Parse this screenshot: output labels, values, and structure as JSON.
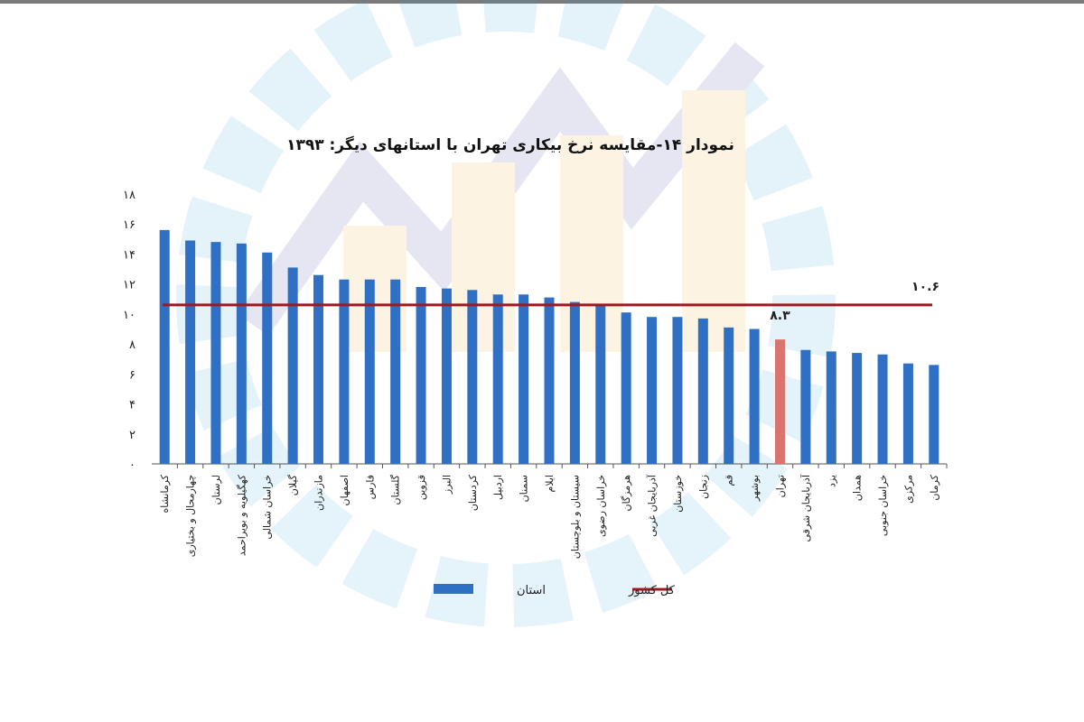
{
  "chart_data": {
    "type": "bar",
    "title": "نمودار ۱۴-مقایسه نرخ بیکاری تهران با استانهای دیگر: ۱۳۹۳",
    "xlabel": "",
    "ylabel": "",
    "ylim": [
      0,
      18
    ],
    "y_ticks": [
      "۰",
      "۲",
      "۴",
      "۶",
      "۸",
      "۱۰",
      "۱۲",
      "۱۴",
      "۱۶",
      "۱۸"
    ],
    "y_tick_values": [
      0,
      2,
      4,
      6,
      8,
      10,
      12,
      14,
      16,
      18
    ],
    "categories": [
      "کرمانشاه",
      "چهارمحال و بختیاری",
      "لرستان",
      "کهگیلویه و بویراحمد",
      "خراسان شمالی",
      "گیلان",
      "مازندران",
      "اصفهان",
      "فارس",
      "گلستان",
      "قزوین",
      "البرز",
      "کردستان",
      "اردبیل",
      "سمنان",
      "ایلام",
      "سیستان و بلوچستان",
      "خراسان رضوی",
      "هرمزگان",
      "آذربایجان غربی",
      "خوزستان",
      "زنجان",
      "قم",
      "بوشهر",
      "تهران",
      "آذربایجان شرقی",
      "یزد",
      "همدان",
      "خراسان جنوبی",
      "مرکزی",
      "کرمان"
    ],
    "series": [
      {
        "name": "استان",
        "color": "#2f6fc4",
        "values": [
          15.6,
          14.9,
          14.8,
          14.7,
          14.1,
          13.1,
          12.6,
          12.3,
          12.3,
          12.3,
          11.8,
          11.7,
          11.6,
          11.3,
          11.3,
          11.1,
          10.8,
          10.6,
          10.1,
          9.8,
          9.8,
          9.7,
          9.1,
          9.0,
          8.3,
          7.6,
          7.5,
          7.4,
          7.3,
          6.7,
          6.6
        ]
      }
    ],
    "highlight": {
      "category": "تهران",
      "color": "#d9746e",
      "label": "۸.۳"
    },
    "reference_line": {
      "name": "کل کشور",
      "value": 10.6,
      "label": "۱۰.۶",
      "color": "#9b1b22"
    },
    "legend": {
      "position": "bottom-center"
    },
    "grid": false
  }
}
